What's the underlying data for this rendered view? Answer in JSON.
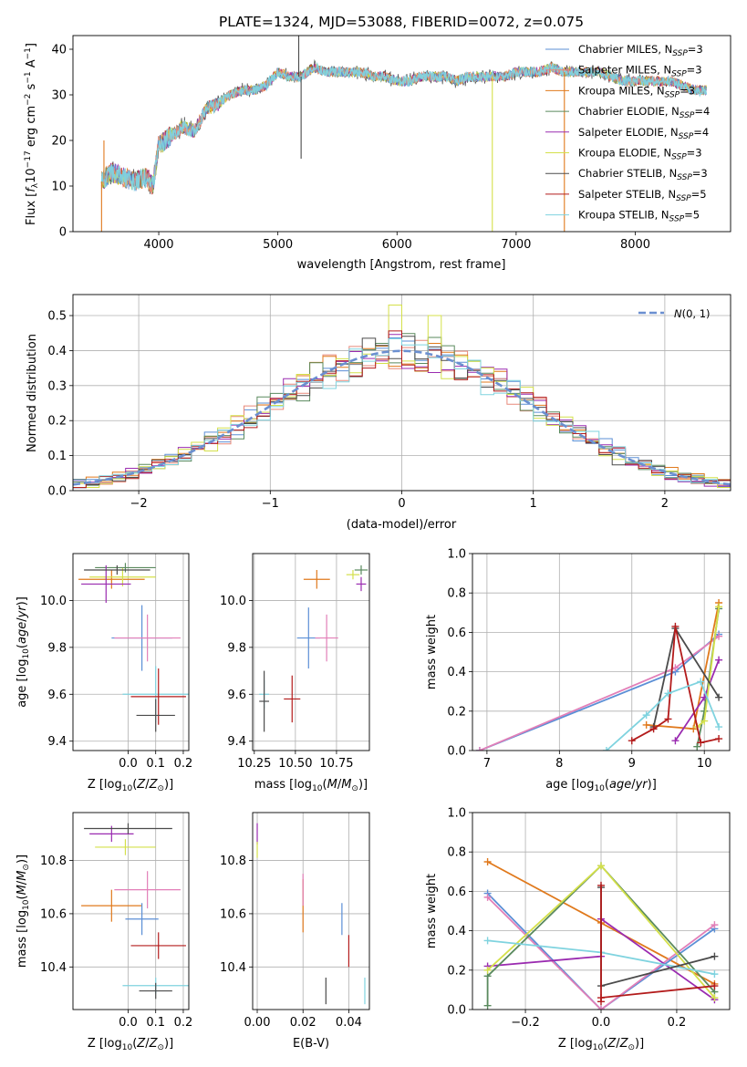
{
  "figure": {
    "title": "PLATE=1324, MJD=53088, FIBERID=0072, z=0.075"
  },
  "colors": {
    "Chabrier MILES": "#5b8fd6",
    "Salpeter MILES": "#e8897a",
    "Kroupa MILES": "#e0791c",
    "Chabrier ELODIE": "#5a8a5e",
    "Salpeter ELODIE": "#9a2bb0",
    "Kroupa ELODIE": "#d4e04a",
    "Chabrier STELIB": "#4b4b4b",
    "Salpeter STELIB": "#b31b1b",
    "Kroupa STELIB": "#7fd3df",
    "salpeter_miles_alt": "#e27fb8"
  },
  "chart_data": [
    {
      "id": "spectrum",
      "type": "line",
      "xlabel": "wavelength [Angstrom, rest frame]",
      "ylabel": "Flux [f_λ 10^-17 erg cm^-2 s^-1 A^-1]",
      "xlim": [
        3280,
        8800
      ],
      "ylim": [
        0,
        43
      ],
      "xticks": [
        4000,
        5000,
        6000,
        7000,
        8000
      ],
      "yticks": [
        0,
        10,
        20,
        30,
        40
      ],
      "legend_position": "upper-right",
      "legend": [
        {
          "label": "Chabrier MILES, N_SSP=3",
          "color_key": "Chabrier MILES"
        },
        {
          "label": "Salpeter MILES, N_SSP=3",
          "color_key": "Salpeter MILES"
        },
        {
          "label": "Kroupa MILES, N_SSP=3",
          "color_key": "Kroupa MILES"
        },
        {
          "label": "Chabrier ELODIE, N_SSP=4",
          "color_key": "Chabrier ELODIE"
        },
        {
          "label": "Salpeter ELODIE, N_SSP=4",
          "color_key": "Salpeter ELODIE"
        },
        {
          "label": "Kroupa ELODIE, N_SSP=3",
          "color_key": "Kroupa ELODIE"
        },
        {
          "label": "Chabrier STELIB, N_SSP=3",
          "color_key": "Chabrier STELIB"
        },
        {
          "label": "Salpeter STELIB, N_SSP=5",
          "color_key": "Salpeter STELIB"
        },
        {
          "label": "Kroupa STELIB, N_SSP=5",
          "color_key": "Kroupa STELIB"
        }
      ],
      "continuum": [
        [
          3520,
          11
        ],
        [
          3600,
          13
        ],
        [
          3700,
          12
        ],
        [
          3800,
          11
        ],
        [
          3900,
          12
        ],
        [
          3950,
          10
        ],
        [
          4000,
          19
        ],
        [
          4100,
          21
        ],
        [
          4200,
          23
        ],
        [
          4300,
          22
        ],
        [
          4400,
          27
        ],
        [
          4500,
          28
        ],
        [
          4600,
          30
        ],
        [
          4700,
          31
        ],
        [
          4800,
          31
        ],
        [
          4900,
          32
        ],
        [
          5000,
          35
        ],
        [
          5100,
          34
        ],
        [
          5200,
          34
        ],
        [
          5300,
          36
        ],
        [
          5400,
          35
        ],
        [
          5500,
          35
        ],
        [
          5600,
          35
        ],
        [
          5700,
          35
        ],
        [
          5800,
          34
        ],
        [
          5900,
          34
        ],
        [
          6000,
          33
        ],
        [
          6100,
          33
        ],
        [
          6200,
          34
        ],
        [
          6300,
          34
        ],
        [
          6400,
          34
        ],
        [
          6500,
          33
        ],
        [
          6600,
          34
        ],
        [
          6700,
          34
        ],
        [
          6800,
          34
        ],
        [
          6900,
          34
        ],
        [
          7000,
          35
        ],
        [
          7100,
          35
        ],
        [
          7200,
          35
        ],
        [
          7300,
          36
        ],
        [
          7400,
          35
        ],
        [
          7500,
          35
        ],
        [
          7600,
          35
        ],
        [
          7700,
          35
        ],
        [
          7800,
          34
        ],
        [
          7900,
          33
        ],
        [
          8000,
          33
        ],
        [
          8100,
          33
        ],
        [
          8200,
          33
        ],
        [
          8300,
          33
        ],
        [
          8400,
          32
        ],
        [
          8500,
          31
        ],
        [
          8600,
          31
        ]
      ],
      "spikes": [
        [
          5175,
          43
        ],
        [
          5195,
          16
        ],
        [
          6800,
          0
        ],
        [
          7405,
          0
        ],
        [
          3520,
          0
        ],
        [
          3540,
          20
        ]
      ]
    },
    {
      "id": "residual_hist",
      "type": "histogram",
      "xlabel": "(data-model)/error",
      "ylabel": "Normed distribution",
      "xlim": [
        -2.5,
        2.5
      ],
      "ylim": [
        0,
        0.56
      ],
      "xticks": [
        -2,
        -1,
        0,
        1,
        2
      ],
      "yticks": [
        0.0,
        0.1,
        0.2,
        0.3,
        0.4,
        0.5
      ],
      "legend": [
        {
          "label": "N(0,1)",
          "style": "dashed",
          "color": "#6b8fd0"
        }
      ],
      "bin_width": 0.1,
      "reference_curve": "gaussian_mean0_sigma1"
    },
    {
      "id": "age_vs_Z",
      "type": "scatter",
      "xlabel": "Z [log10(Z/Z_sun)]",
      "ylabel": "age  [log10(age/yr)]",
      "xlim": [
        -0.2,
        0.22
      ],
      "ylim": [
        9.36,
        10.2
      ],
      "xticks": [
        0.0,
        0.1,
        0.2
      ],
      "yticks": [
        9.4,
        9.6,
        9.8,
        10.0
      ],
      "points": [
        {
          "color_key": "Kroupa MILES",
          "x": -0.06,
          "xerr": 0.12,
          "y": 10.09,
          "yerr": 0.04
        },
        {
          "color_key": "Kroupa ELODIE",
          "x": -0.02,
          "xerr": 0.12,
          "y": 10.1,
          "yerr": 0.04
        },
        {
          "color_key": "Chabrier ELODIE",
          "x": -0.01,
          "xerr": 0.11,
          "y": 10.14,
          "yerr": 0.02
        },
        {
          "color_key": "Salpeter ELODIE",
          "x": -0.08,
          "xerr": 0.09,
          "y": 10.07,
          "yerr": 0.08
        },
        {
          "color_key": "Chabrier STELIB",
          "x": -0.04,
          "xerr": 0.12,
          "y": 10.13,
          "yerr": 0.02
        },
        {
          "color_key": "Chabrier MILES",
          "x": 0.05,
          "xerr": 0.11,
          "y": 9.84,
          "yerr": 0.14
        },
        {
          "color_key": "salpeter_miles_alt",
          "x": 0.07,
          "xerr": 0.12,
          "y": 9.84,
          "yerr": 0.1
        },
        {
          "color_key": "Kroupa STELIB",
          "x": 0.1,
          "xerr": 0.12,
          "y": 9.6,
          "yerr": 0.12
        },
        {
          "color_key": "Salpeter STELIB",
          "x": 0.11,
          "xerr": 0.1,
          "y": 9.59,
          "yerr": 0.12
        },
        {
          "color_key": "Chabrier STELIB",
          "x": 0.1,
          "xerr": 0.07,
          "y": 9.51,
          "yerr": 0.07
        }
      ]
    },
    {
      "id": "age_vs_mass",
      "type": "scatter",
      "xlabel": "mass [log10(M/M_sun)]",
      "xlim": [
        10.24,
        10.95
      ],
      "ylim": [
        9.36,
        10.2
      ],
      "xticks": [
        10.25,
        10.5,
        10.75
      ],
      "yticks": [
        9.4,
        9.6,
        9.8,
        10.0
      ],
      "points": [
        {
          "color_key": "Kroupa MILES",
          "x": 10.63,
          "xerr": 0.08,
          "y": 10.09,
          "yerr": 0.04
        },
        {
          "color_key": "Kroupa ELODIE",
          "x": 10.85,
          "xerr": 0.04,
          "y": 10.11,
          "yerr": 0.02
        },
        {
          "color_key": "Chabrier ELODIE",
          "x": 10.9,
          "xerr": 0.04,
          "y": 10.13,
          "yerr": 0.02
        },
        {
          "color_key": "Salpeter ELODIE",
          "x": 10.9,
          "xerr": 0.03,
          "y": 10.07,
          "yerr": 0.03
        },
        {
          "color_key": "Chabrier MILES",
          "x": 10.58,
          "xerr": 0.07,
          "y": 9.84,
          "yerr": 0.13
        },
        {
          "color_key": "salpeter_miles_alt",
          "x": 10.69,
          "xerr": 0.07,
          "y": 9.84,
          "yerr": 0.1
        },
        {
          "color_key": "Kroupa STELIB",
          "x": 10.31,
          "xerr": 0.03,
          "y": 9.6,
          "yerr": 0.06
        },
        {
          "color_key": "Chabrier STELIB",
          "x": 10.31,
          "xerr": 0.03,
          "y": 9.57,
          "yerr": 0.13
        },
        {
          "color_key": "Salpeter STELIB",
          "x": 10.48,
          "xerr": 0.05,
          "y": 9.58,
          "yerr": 0.1
        }
      ]
    },
    {
      "id": "weight_vs_age",
      "type": "line",
      "xlabel": "age  [log10(age/yr)]",
      "ylabel": "mass weight",
      "xlim": [
        6.8,
        10.35
      ],
      "ylim": [
        0,
        1.0
      ],
      "xticks": [
        7,
        8,
        9,
        10
      ],
      "yticks": [
        0.0,
        0.2,
        0.4,
        0.6,
        0.8,
        1.0
      ],
      "series": [
        {
          "color_key": "Chabrier MILES",
          "x": [
            6.9,
            9.6,
            10.2
          ],
          "y": [
            0.0,
            0.4,
            0.59
          ]
        },
        {
          "color_key": "salpeter_miles_alt",
          "x": [
            6.9,
            9.6,
            10.2
          ],
          "y": [
            0.0,
            0.42,
            0.58
          ]
        },
        {
          "color_key": "Kroupa MILES",
          "x": [
            9.2,
            9.85,
            10.2
          ],
          "y": [
            0.13,
            0.11,
            0.75
          ]
        },
        {
          "color_key": "Chabrier ELODIE",
          "x": [
            9.9,
            10.0,
            10.2
          ],
          "y": [
            0.02,
            0.2,
            0.72
          ]
        },
        {
          "color_key": "Salpeter ELODIE",
          "x": [
            9.6,
            10.0,
            10.2
          ],
          "y": [
            0.05,
            0.27,
            0.46
          ]
        },
        {
          "color_key": "Kroupa ELODIE",
          "x": [
            9.9,
            10.0,
            10.2
          ],
          "y": [
            0.12,
            0.15,
            0.73
          ]
        },
        {
          "color_key": "Chabrier STELIB",
          "x": [
            9.3,
            9.6,
            10.2
          ],
          "y": [
            0.12,
            0.62,
            0.27
          ]
        },
        {
          "color_key": "Salpeter STELIB",
          "x": [
            9.0,
            9.3,
            9.5,
            9.6,
            9.95,
            10.2
          ],
          "y": [
            0.05,
            0.11,
            0.16,
            0.63,
            0.04,
            0.06
          ]
        },
        {
          "color_key": "Kroupa STELIB",
          "x": [
            8.65,
            9.2,
            9.5,
            9.95,
            10.2
          ],
          "y": [
            0.0,
            0.18,
            0.29,
            0.35,
            0.12
          ]
        }
      ]
    },
    {
      "id": "mass_vs_Z",
      "type": "scatter",
      "xlabel": "Z [log10(Z/Z_sun)]",
      "ylabel": "mass [log10(M/M_sun)]",
      "xlim": [
        -0.2,
        0.22
      ],
      "ylim": [
        10.24,
        10.98
      ],
      "xticks": [
        0.0,
        0.1,
        0.2
      ],
      "yticks": [
        10.4,
        10.6,
        10.8
      ],
      "points": [
        {
          "color_key": "Salpeter ELODIE",
          "x": -0.06,
          "xerr": 0.08,
          "y": 10.9,
          "yerr": 0.03
        },
        {
          "color_key": "Chabrier STELIB",
          "x": 0.0,
          "xerr": 0.16,
          "y": 10.92,
          "yerr": 0.02
        },
        {
          "color_key": "Kroupa ELODIE",
          "x": -0.01,
          "xerr": 0.11,
          "y": 10.85,
          "yerr": 0.03
        },
        {
          "color_key": "salpeter_miles_alt",
          "x": 0.07,
          "xerr": 0.12,
          "y": 10.69,
          "yerr": 0.07
        },
        {
          "color_key": "Kroupa MILES",
          "x": -0.06,
          "xerr": 0.11,
          "y": 10.63,
          "yerr": 0.06
        },
        {
          "color_key": "Chabrier MILES",
          "x": 0.05,
          "xerr": 0.06,
          "y": 10.58,
          "yerr": 0.06
        },
        {
          "color_key": "Salpeter STELIB",
          "x": 0.11,
          "xerr": 0.1,
          "y": 10.48,
          "yerr": 0.05
        },
        {
          "color_key": "Kroupa STELIB",
          "x": 0.1,
          "xerr": 0.12,
          "y": 10.33,
          "yerr": 0.03
        },
        {
          "color_key": "Chabrier STELIB",
          "x": 0.1,
          "xerr": 0.06,
          "y": 10.31,
          "yerr": 0.03
        }
      ]
    },
    {
      "id": "mass_vs_ebv",
      "type": "scatter",
      "xlabel": "E(B-V)",
      "xlim": [
        -0.002,
        0.049
      ],
      "ylim": [
        10.24,
        10.98
      ],
      "xticks": [
        0.0,
        0.02,
        0.04
      ],
      "yticks": [
        10.4,
        10.6,
        10.8
      ],
      "points": [
        {
          "color_key": "Salpeter ELODIE",
          "x": 0.0,
          "xerr": 0.0,
          "y": 10.9,
          "yerr": 0.04
        },
        {
          "color_key": "Kroupa ELODIE",
          "x": 0.0,
          "xerr": 0.0,
          "y": 10.84,
          "yerr": 0.03
        },
        {
          "color_key": "Kroupa MILES",
          "x": 0.02,
          "xerr": 0.0,
          "y": 10.63,
          "yerr": 0.1
        },
        {
          "color_key": "salpeter_miles_alt",
          "x": 0.02,
          "xerr": 0.0,
          "y": 10.69,
          "yerr": 0.06
        },
        {
          "color_key": "Chabrier MILES",
          "x": 0.037,
          "xerr": 0.0,
          "y": 10.58,
          "yerr": 0.06
        },
        {
          "color_key": "Salpeter STELIB",
          "x": 0.04,
          "xerr": 0.0,
          "y": 10.46,
          "yerr": 0.06
        },
        {
          "color_key": "Chabrier STELIB",
          "x": 0.03,
          "xerr": 0.0,
          "y": 10.31,
          "yerr": 0.05
        },
        {
          "color_key": "Kroupa STELIB",
          "x": 0.047,
          "xerr": 0.0,
          "y": 10.31,
          "yerr": 0.05
        }
      ]
    },
    {
      "id": "weight_vs_Z",
      "type": "line",
      "xlabel": "Z [log10(Z/Z_sun)]",
      "ylabel": "mass weight",
      "xlim": [
        -0.34,
        0.34
      ],
      "ylim": [
        0,
        1.0
      ],
      "xticks": [
        -0.2,
        0.0,
        0.2
      ],
      "yticks": [
        0.0,
        0.2,
        0.4,
        0.6,
        0.8,
        1.0
      ],
      "series": [
        {
          "color_key": "Kroupa MILES",
          "x": [
            -0.3,
            0.0,
            0.3
          ],
          "y": [
            0.75,
            0.44,
            0.13
          ]
        },
        {
          "color_key": "Chabrier MILES",
          "x": [
            -0.3,
            0.0,
            0.3
          ],
          "y": [
            0.59,
            0.0,
            0.41
          ]
        },
        {
          "color_key": "salpeter_miles_alt",
          "x": [
            -0.3,
            0.0,
            0.3
          ],
          "y": [
            0.57,
            0.0,
            0.43
          ]
        },
        {
          "color_key": "Salpeter ELODIE",
          "x": [
            -0.3,
            0.0,
            0.0,
            0.3
          ],
          "y": [
            0.22,
            0.27,
            0.46,
            0.05
          ]
        },
        {
          "color_key": "Chabrier ELODIE",
          "x": [
            -0.3,
            -0.3,
            0.0,
            0.3
          ],
          "y": [
            0.02,
            0.17,
            0.73,
            0.09
          ]
        },
        {
          "color_key": "Kroupa ELODIE",
          "x": [
            -0.3,
            0.0,
            0.3
          ],
          "y": [
            0.2,
            0.73,
            0.06
          ]
        },
        {
          "color_key": "Kroupa STELIB",
          "x": [
            -0.3,
            0.0,
            0.3
          ],
          "y": [
            0.35,
            0.29,
            0.18
          ]
        },
        {
          "color_key": "Chabrier STELIB",
          "x": [
            0.0,
            0.0,
            0.3
          ],
          "y": [
            0.62,
            0.12,
            0.27
          ]
        },
        {
          "color_key": "Salpeter STELIB",
          "x": [
            0.0,
            0.0,
            0.0,
            0.3
          ],
          "y": [
            0.63,
            0.04,
            0.06,
            0.12
          ]
        }
      ]
    }
  ]
}
